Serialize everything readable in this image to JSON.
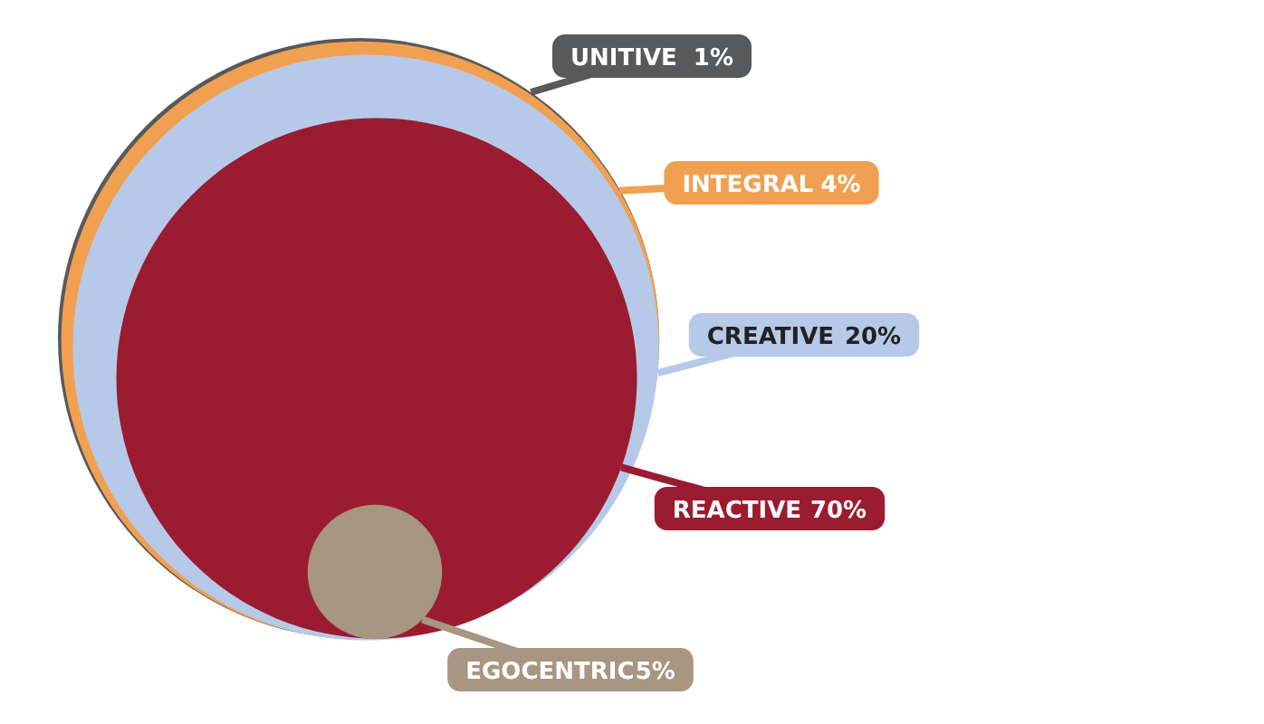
{
  "chart_data": {
    "type": "other",
    "categories": [
      "UNITIVE",
      "INTEGRAL",
      "CREATIVE",
      "REACTIVE",
      "EGOCENTRIC"
    ],
    "values": [
      1,
      4,
      20,
      70,
      5
    ],
    "value_labels": [
      "1%",
      "4%",
      "20%",
      "70%",
      "5%"
    ],
    "data_labels": true,
    "colors": [
      "#58595b",
      "#f0a050",
      "#b7c9e8",
      "#9b1b30",
      "#a69682"
    ]
  }
}
